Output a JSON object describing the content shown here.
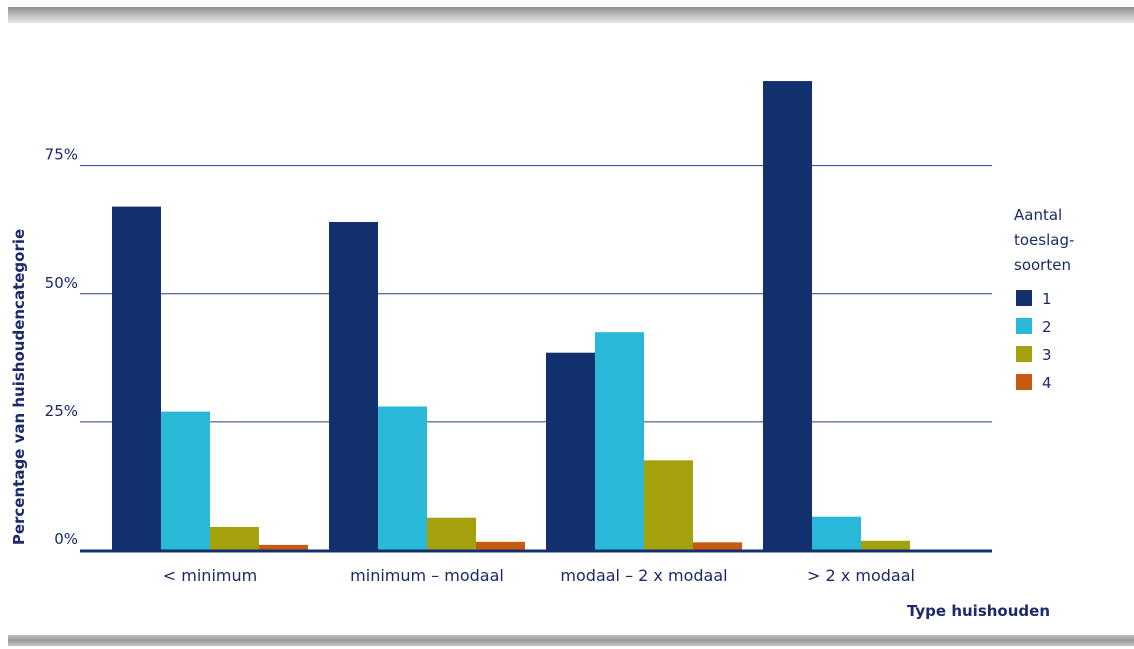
{
  "chart_data": {
    "type": "bar",
    "categories": [
      "< minimum",
      "minimum – modaal",
      "modaal – 2 x modaal",
      "> 2 x modaal"
    ],
    "series": [
      {
        "name": "1",
        "values": [
          67,
          64,
          38.5,
          91.5
        ],
        "color": "#13306e"
      },
      {
        "name": "2",
        "values": [
          27,
          28,
          42.5,
          6.5
        ],
        "color": "#29b8d8"
      },
      {
        "name": "3",
        "values": [
          4.5,
          6.3,
          17.5,
          1.8
        ],
        "color": "#a3a20c"
      },
      {
        "name": "4",
        "values": [
          1,
          1.6,
          1.5,
          0
        ],
        "color": "#c85a14"
      }
    ],
    "yticks": [
      "0%",
      "25%",
      "50%",
      "75%"
    ],
    "ylim": [
      0,
      100
    ],
    "ylabel": "Percentage van huishoudencategorie",
    "xlabel": "Type huishouden",
    "legend_title": [
      "Aantal",
      "toeslag-",
      "soorten"
    ],
    "legend_position": "right",
    "grid": true,
    "grid_color": "#27407a",
    "axis_color": "#13306e"
  }
}
